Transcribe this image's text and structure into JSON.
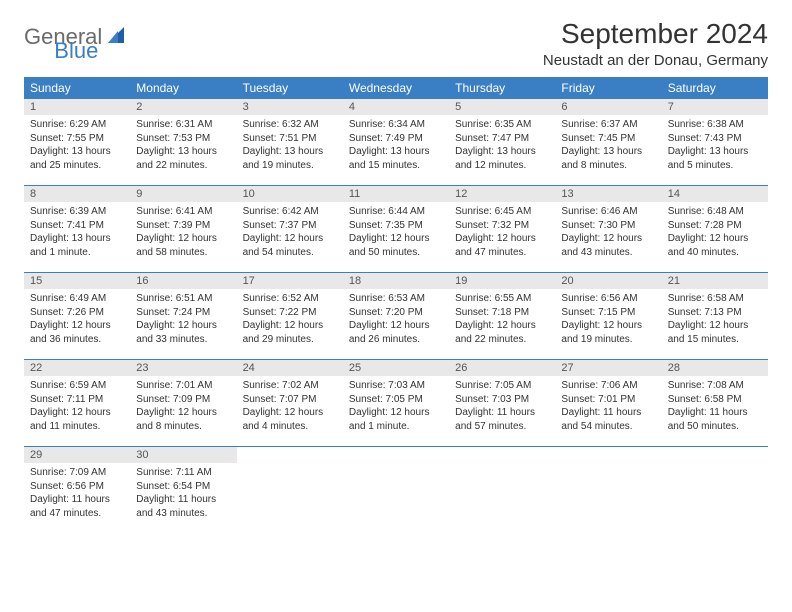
{
  "logo": {
    "text1": "General",
    "text2": "Blue"
  },
  "title": "September 2024",
  "location": "Neustadt an der Donau, Germany",
  "colors": {
    "header_bg": "#3a7fc4",
    "daynum_bg": "#e8e8e8",
    "text": "#333333",
    "logo_gray": "#6b6b6b",
    "logo_blue": "#3a7fc4"
  },
  "weekdays": [
    "Sunday",
    "Monday",
    "Tuesday",
    "Wednesday",
    "Thursday",
    "Friday",
    "Saturday"
  ],
  "weeks": [
    [
      {
        "n": "1",
        "sunrise": "6:29 AM",
        "sunset": "7:55 PM",
        "dl1": "Daylight: 13 hours",
        "dl2": "and 25 minutes."
      },
      {
        "n": "2",
        "sunrise": "6:31 AM",
        "sunset": "7:53 PM",
        "dl1": "Daylight: 13 hours",
        "dl2": "and 22 minutes."
      },
      {
        "n": "3",
        "sunrise": "6:32 AM",
        "sunset": "7:51 PM",
        "dl1": "Daylight: 13 hours",
        "dl2": "and 19 minutes."
      },
      {
        "n": "4",
        "sunrise": "6:34 AM",
        "sunset": "7:49 PM",
        "dl1": "Daylight: 13 hours",
        "dl2": "and 15 minutes."
      },
      {
        "n": "5",
        "sunrise": "6:35 AM",
        "sunset": "7:47 PM",
        "dl1": "Daylight: 13 hours",
        "dl2": "and 12 minutes."
      },
      {
        "n": "6",
        "sunrise": "6:37 AM",
        "sunset": "7:45 PM",
        "dl1": "Daylight: 13 hours",
        "dl2": "and 8 minutes."
      },
      {
        "n": "7",
        "sunrise": "6:38 AM",
        "sunset": "7:43 PM",
        "dl1": "Daylight: 13 hours",
        "dl2": "and 5 minutes."
      }
    ],
    [
      {
        "n": "8",
        "sunrise": "6:39 AM",
        "sunset": "7:41 PM",
        "dl1": "Daylight: 13 hours",
        "dl2": "and 1 minute."
      },
      {
        "n": "9",
        "sunrise": "6:41 AM",
        "sunset": "7:39 PM",
        "dl1": "Daylight: 12 hours",
        "dl2": "and 58 minutes."
      },
      {
        "n": "10",
        "sunrise": "6:42 AM",
        "sunset": "7:37 PM",
        "dl1": "Daylight: 12 hours",
        "dl2": "and 54 minutes."
      },
      {
        "n": "11",
        "sunrise": "6:44 AM",
        "sunset": "7:35 PM",
        "dl1": "Daylight: 12 hours",
        "dl2": "and 50 minutes."
      },
      {
        "n": "12",
        "sunrise": "6:45 AM",
        "sunset": "7:32 PM",
        "dl1": "Daylight: 12 hours",
        "dl2": "and 47 minutes."
      },
      {
        "n": "13",
        "sunrise": "6:46 AM",
        "sunset": "7:30 PM",
        "dl1": "Daylight: 12 hours",
        "dl2": "and 43 minutes."
      },
      {
        "n": "14",
        "sunrise": "6:48 AM",
        "sunset": "7:28 PM",
        "dl1": "Daylight: 12 hours",
        "dl2": "and 40 minutes."
      }
    ],
    [
      {
        "n": "15",
        "sunrise": "6:49 AM",
        "sunset": "7:26 PM",
        "dl1": "Daylight: 12 hours",
        "dl2": "and 36 minutes."
      },
      {
        "n": "16",
        "sunrise": "6:51 AM",
        "sunset": "7:24 PM",
        "dl1": "Daylight: 12 hours",
        "dl2": "and 33 minutes."
      },
      {
        "n": "17",
        "sunrise": "6:52 AM",
        "sunset": "7:22 PM",
        "dl1": "Daylight: 12 hours",
        "dl2": "and 29 minutes."
      },
      {
        "n": "18",
        "sunrise": "6:53 AM",
        "sunset": "7:20 PM",
        "dl1": "Daylight: 12 hours",
        "dl2": "and 26 minutes."
      },
      {
        "n": "19",
        "sunrise": "6:55 AM",
        "sunset": "7:18 PM",
        "dl1": "Daylight: 12 hours",
        "dl2": "and 22 minutes."
      },
      {
        "n": "20",
        "sunrise": "6:56 AM",
        "sunset": "7:15 PM",
        "dl1": "Daylight: 12 hours",
        "dl2": "and 19 minutes."
      },
      {
        "n": "21",
        "sunrise": "6:58 AM",
        "sunset": "7:13 PM",
        "dl1": "Daylight: 12 hours",
        "dl2": "and 15 minutes."
      }
    ],
    [
      {
        "n": "22",
        "sunrise": "6:59 AM",
        "sunset": "7:11 PM",
        "dl1": "Daylight: 12 hours",
        "dl2": "and 11 minutes."
      },
      {
        "n": "23",
        "sunrise": "7:01 AM",
        "sunset": "7:09 PM",
        "dl1": "Daylight: 12 hours",
        "dl2": "and 8 minutes."
      },
      {
        "n": "24",
        "sunrise": "7:02 AM",
        "sunset": "7:07 PM",
        "dl1": "Daylight: 12 hours",
        "dl2": "and 4 minutes."
      },
      {
        "n": "25",
        "sunrise": "7:03 AM",
        "sunset": "7:05 PM",
        "dl1": "Daylight: 12 hours",
        "dl2": "and 1 minute."
      },
      {
        "n": "26",
        "sunrise": "7:05 AM",
        "sunset": "7:03 PM",
        "dl1": "Daylight: 11 hours",
        "dl2": "and 57 minutes."
      },
      {
        "n": "27",
        "sunrise": "7:06 AM",
        "sunset": "7:01 PM",
        "dl1": "Daylight: 11 hours",
        "dl2": "and 54 minutes."
      },
      {
        "n": "28",
        "sunrise": "7:08 AM",
        "sunset": "6:58 PM",
        "dl1": "Daylight: 11 hours",
        "dl2": "and 50 minutes."
      }
    ],
    [
      {
        "n": "29",
        "sunrise": "7:09 AM",
        "sunset": "6:56 PM",
        "dl1": "Daylight: 11 hours",
        "dl2": "and 47 minutes."
      },
      {
        "n": "30",
        "sunrise": "7:11 AM",
        "sunset": "6:54 PM",
        "dl1": "Daylight: 11 hours",
        "dl2": "and 43 minutes."
      },
      null,
      null,
      null,
      null,
      null
    ]
  ],
  "labels": {
    "sunrise_prefix": "Sunrise: ",
    "sunset_prefix": "Sunset: "
  }
}
